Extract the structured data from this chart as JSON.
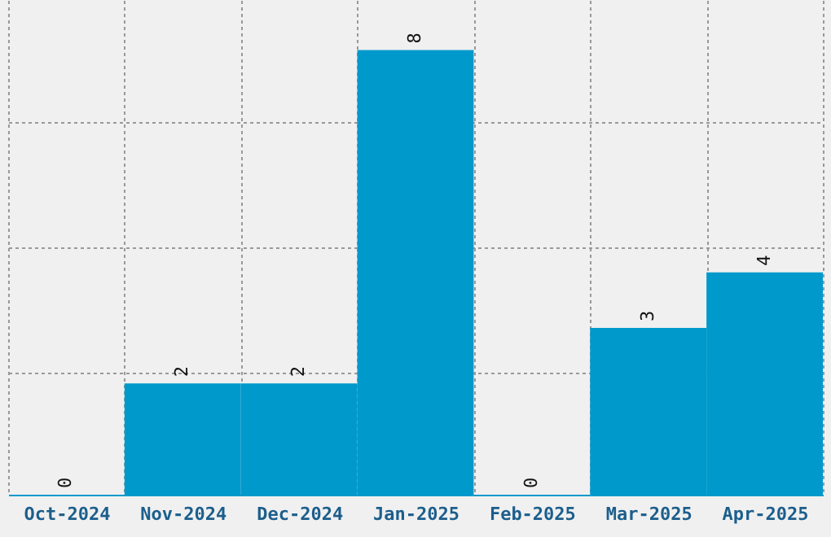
{
  "chart_data": {
    "type": "bar",
    "categories": [
      "Oct-2024",
      "Nov-2024",
      "Dec-2024",
      "Jan-2025",
      "Feb-2025",
      "Mar-2025",
      "Apr-2025"
    ],
    "values": [
      0,
      2,
      2,
      8,
      0,
      3,
      4
    ],
    "color": "#0099cc",
    "ylim": [
      0,
      8.9
    ],
    "yticks": [
      {
        "value": 0,
        "label": null
      },
      {
        "value": 2.2,
        "label": null
      },
      {
        "value": 4.45,
        "label": null
      },
      {
        "value": 6.7,
        "label": null
      }
    ],
    "grid": true,
    "data_labels": true,
    "tick_labels": "x"
  }
}
